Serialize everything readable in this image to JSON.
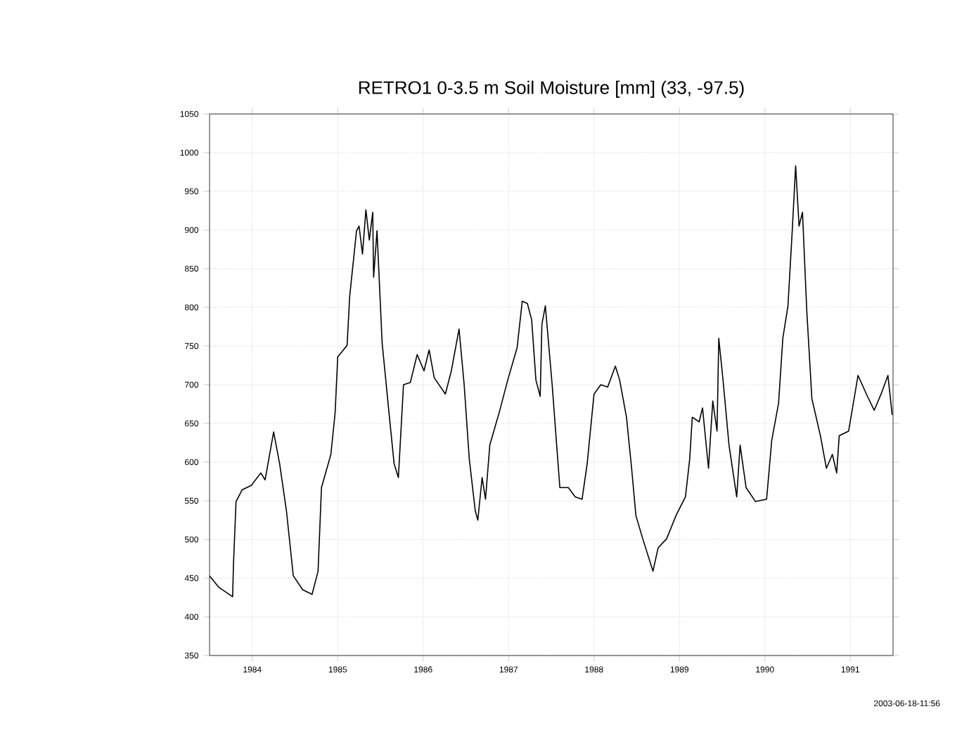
{
  "chart_data": {
    "type": "line",
    "title": "RETRO1 0-3.5 m Soil Moisture [mm] (33, -97.5)",
    "x": [
      1983.5,
      1983.61,
      1983.77,
      1983.78,
      1983.81,
      1983.88,
      1983.99,
      1984.1,
      1984.15,
      1984.25,
      1984.32,
      1984.4,
      1984.48,
      1984.59,
      1984.7,
      1984.77,
      1984.81,
      1984.92,
      1984.97,
      1985.0,
      1985.11,
      1985.14,
      1985.22,
      1985.25,
      1985.29,
      1985.33,
      1985.37,
      1985.41,
      1985.42,
      1985.46,
      1985.52,
      1985.6,
      1985.66,
      1985.71,
      1985.77,
      1985.85,
      1985.93,
      1986.01,
      1986.07,
      1986.13,
      1986.26,
      1986.33,
      1986.42,
      1986.48,
      1986.54,
      1986.61,
      1986.64,
      1986.69,
      1986.73,
      1986.78,
      1986.89,
      1986.99,
      1987.1,
      1987.16,
      1987.22,
      1987.27,
      1987.32,
      1987.37,
      1987.39,
      1987.43,
      1987.51,
      1987.6,
      1987.7,
      1987.78,
      1987.86,
      1987.92,
      1988.0,
      1988.08,
      1988.16,
      1988.25,
      1988.3,
      1988.38,
      1988.44,
      1988.49,
      1988.57,
      1988.69,
      1988.75,
      1988.85,
      1988.96,
      1989.07,
      1989.12,
      1989.15,
      1989.23,
      1989.27,
      1989.34,
      1989.39,
      1989.44,
      1989.46,
      1989.51,
      1989.58,
      1989.67,
      1989.71,
      1989.78,
      1989.89,
      1990.02,
      1990.08,
      1990.16,
      1990.21,
      1990.27,
      1990.32,
      1990.36,
      1990.4,
      1990.44,
      1990.49,
      1990.55,
      1990.65,
      1990.72,
      1990.79,
      1990.84,
      1990.87,
      1990.98,
      1991.09,
      1991.2,
      1991.28,
      1991.36,
      1991.44,
      1991.49
    ],
    "series": [
      {
        "color": "#000000",
        "values": [
          453,
          438,
          426,
          468,
          549,
          564,
          570,
          586,
          577,
          639,
          598,
          537,
          453,
          435,
          429,
          459,
          567,
          610,
          664,
          736,
          751,
          814,
          899,
          905,
          869,
          926,
          887,
          923,
          839,
          899,
          754,
          664,
          598,
          580,
          700,
          703,
          739,
          718,
          745,
          709,
          688,
          718,
          772,
          700,
          604,
          537,
          525,
          580,
          552,
          622,
          664,
          706,
          748,
          808,
          805,
          784,
          706,
          685,
          778,
          802,
          700,
          567,
          567,
          555,
          552,
          598,
          688,
          700,
          697,
          724,
          706,
          658,
          592,
          531,
          501,
          459,
          489,
          501,
          531,
          555,
          604,
          658,
          652,
          670,
          592,
          679,
          640,
          760,
          706,
          622,
          555,
          622,
          567,
          549,
          552,
          628,
          676,
          760,
          802,
          899,
          983,
          905,
          923,
          796,
          682,
          634,
          592,
          610,
          586,
          634,
          640,
          712,
          685,
          667,
          688,
          712,
          661
        ]
      }
    ],
    "xlim": [
      1983.5,
      1991.5
    ],
    "xticks": [
      1984,
      1985,
      1986,
      1987,
      1988,
      1989,
      1990,
      1991
    ],
    "ylim": [
      350,
      1050
    ],
    "yticks": [
      350,
      400,
      450,
      500,
      550,
      600,
      650,
      700,
      750,
      800,
      850,
      900,
      950,
      1000,
      1050
    ],
    "grid": true,
    "line_style": "solid",
    "annotations": [
      "2003-06-18-11:56"
    ]
  }
}
